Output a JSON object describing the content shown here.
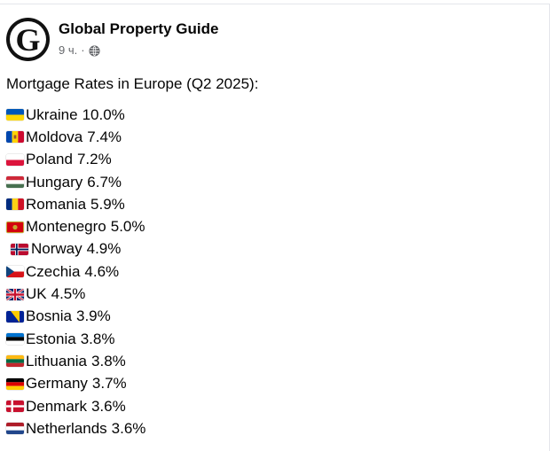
{
  "post": {
    "author": "Global Property Guide",
    "avatar_letter": "G",
    "time": "9 ч.",
    "separator": "·",
    "audience_icon": "globe-icon",
    "title": "Mortgage Rates in Europe (Q2 2025):"
  },
  "rates": [
    {
      "country": "Ukraine",
      "rate": "10.0%",
      "flag": "ua"
    },
    {
      "country": "Moldova",
      "rate": "7.4%",
      "flag": "md"
    },
    {
      "country": "Poland",
      "rate": "7.2%",
      "flag": "pl"
    },
    {
      "country": "Hungary",
      "rate": "6.7%",
      "flag": "hu"
    },
    {
      "country": "Romania",
      "rate": "5.9%",
      "flag": "ro"
    },
    {
      "country": "Montenegro",
      "rate": "5.0%",
      "flag": "me"
    },
    {
      "country": "Norway",
      "rate": "4.9%",
      "flag": "no"
    },
    {
      "country": "Czechia",
      "rate": "4.6%",
      "flag": "cz"
    },
    {
      "country": "UK",
      "rate": "4.5%",
      "flag": "gb"
    },
    {
      "country": "Bosnia",
      "rate": "3.9%",
      "flag": "ba"
    },
    {
      "country": "Estonia",
      "rate": "3.8%",
      "flag": "ee"
    },
    {
      "country": "Lithuania",
      "rate": "3.8%",
      "flag": "lt"
    },
    {
      "country": "Germany",
      "rate": "3.7%",
      "flag": "de"
    },
    {
      "country": "Denmark",
      "rate": "3.6%",
      "flag": "dk"
    },
    {
      "country": "Netherlands",
      "rate": "3.6%",
      "flag": "nl"
    }
  ]
}
